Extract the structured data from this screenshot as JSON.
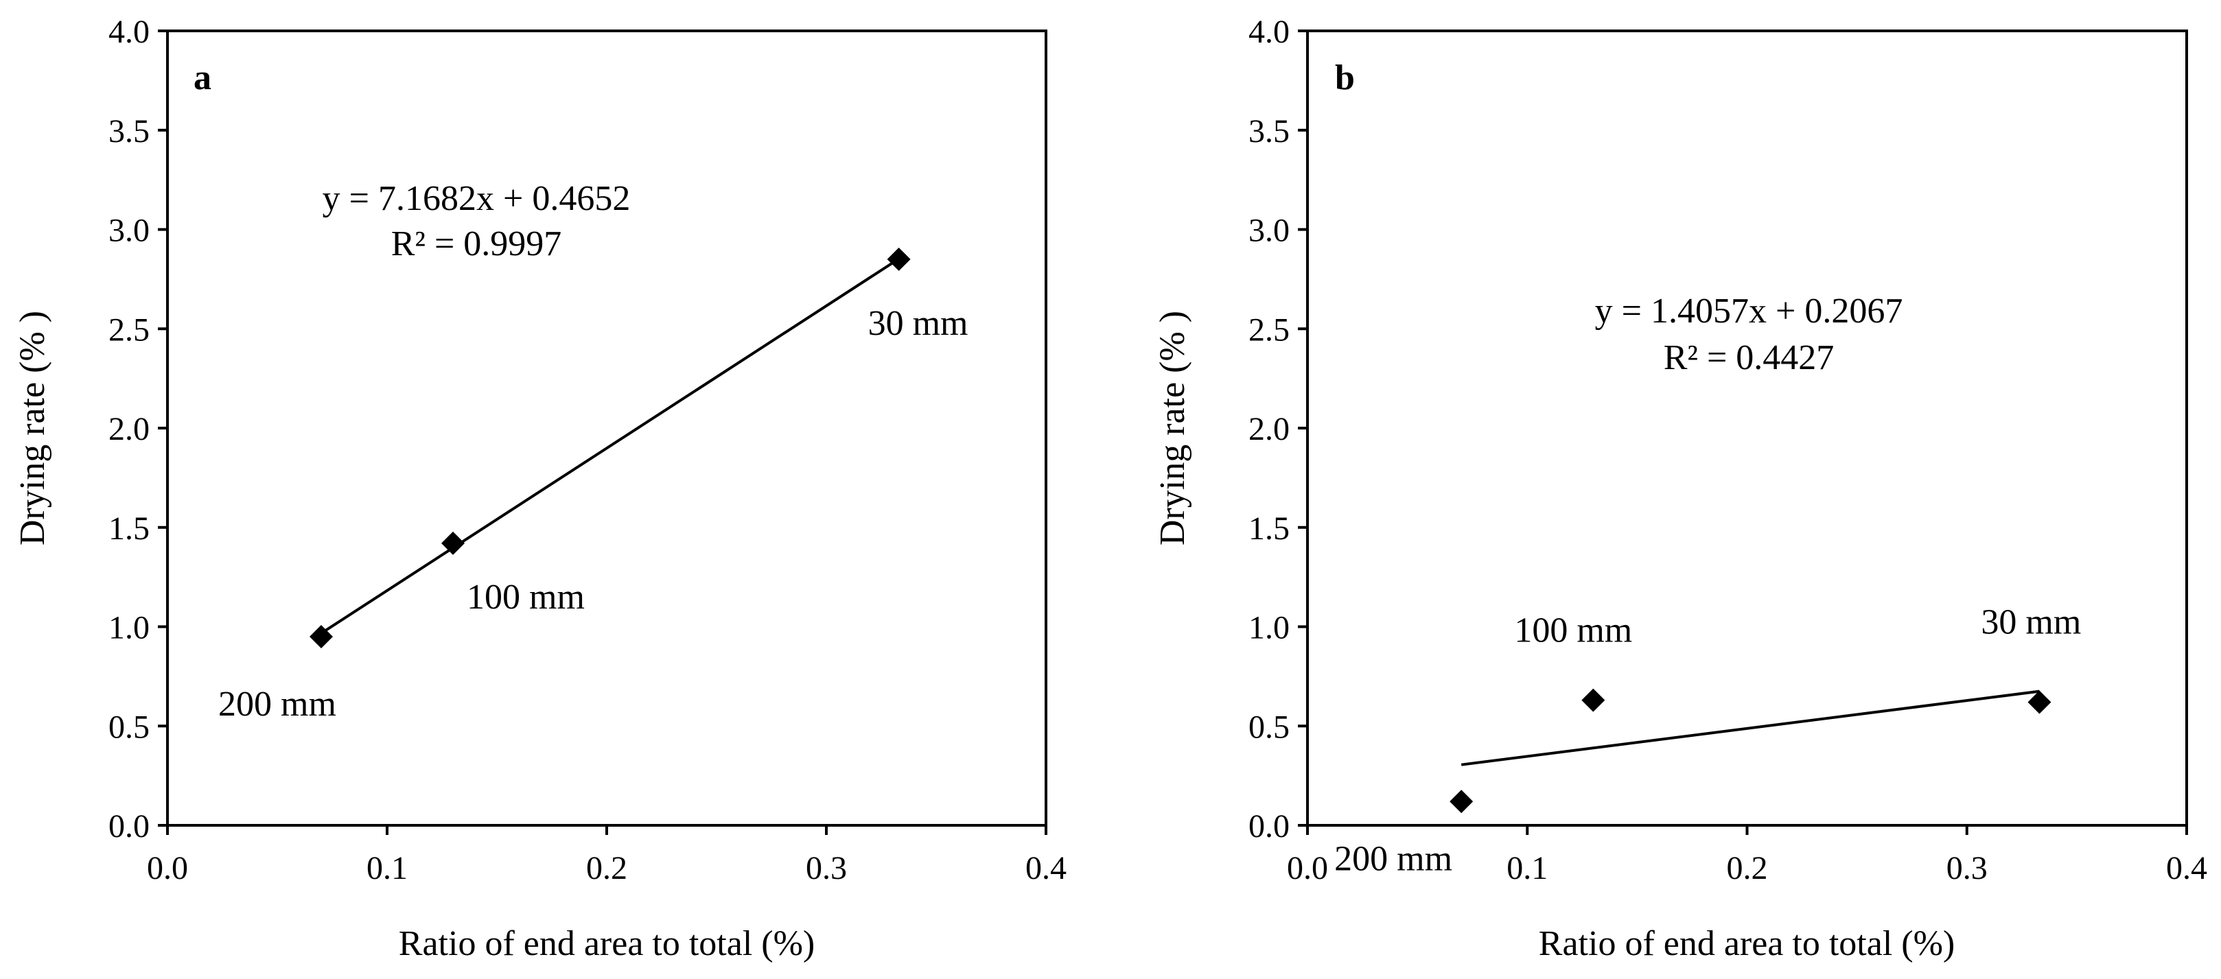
{
  "chart_data": [
    {
      "type": "scatter",
      "panel_label": "a",
      "xlabel": "Ratio of end area to total (%)",
      "ylabel": "Drying rate (% )",
      "xlim": [
        0.0,
        0.4
      ],
      "ylim": [
        0.0,
        4.0
      ],
      "x_ticks": [
        "0.0",
        "0.1",
        "0.2",
        "0.3",
        "0.4"
      ],
      "y_ticks": [
        "0.0",
        "0.5",
        "1.0",
        "1.5",
        "2.0",
        "2.5",
        "3.0",
        "3.5",
        "4.0"
      ],
      "points": [
        {
          "label": "200 mm",
          "x": 0.07,
          "y": 0.95
        },
        {
          "label": "100 mm",
          "x": 0.13,
          "y": 1.42
        },
        {
          "label": "30 mm",
          "x": 0.333,
          "y": 2.85
        }
      ],
      "trendline": {
        "slope": 7.1682,
        "intercept": 0.4652,
        "x_range": [
          0.07,
          0.333
        ]
      },
      "equation": "y = 7.1682x + 0.4652",
      "r_squared": "R² = 0.9997"
    },
    {
      "type": "scatter",
      "panel_label": "b",
      "xlabel": "Ratio of end area to total (%)",
      "ylabel": "Drying rate (% )",
      "xlim": [
        0.0,
        0.4
      ],
      "ylim": [
        0.0,
        4.0
      ],
      "x_ticks": [
        "0.0",
        "0.1",
        "0.2",
        "0.3",
        "0.4"
      ],
      "y_ticks": [
        "0.0",
        "0.5",
        "1.0",
        "1.5",
        "2.0",
        "2.5",
        "3.0",
        "3.5",
        "4.0"
      ],
      "points": [
        {
          "label": "200 mm",
          "x": 0.07,
          "y": 0.12
        },
        {
          "label": "100 mm",
          "x": 0.13,
          "y": 0.63
        },
        {
          "label": "30 mm",
          "x": 0.333,
          "y": 0.62
        }
      ],
      "trendline": {
        "slope": 1.4057,
        "intercept": 0.2067,
        "x_range": [
          0.07,
          0.333
        ]
      },
      "equation": "y = 1.4057x + 0.2067",
      "r_squared": "R² = 0.4427"
    }
  ]
}
